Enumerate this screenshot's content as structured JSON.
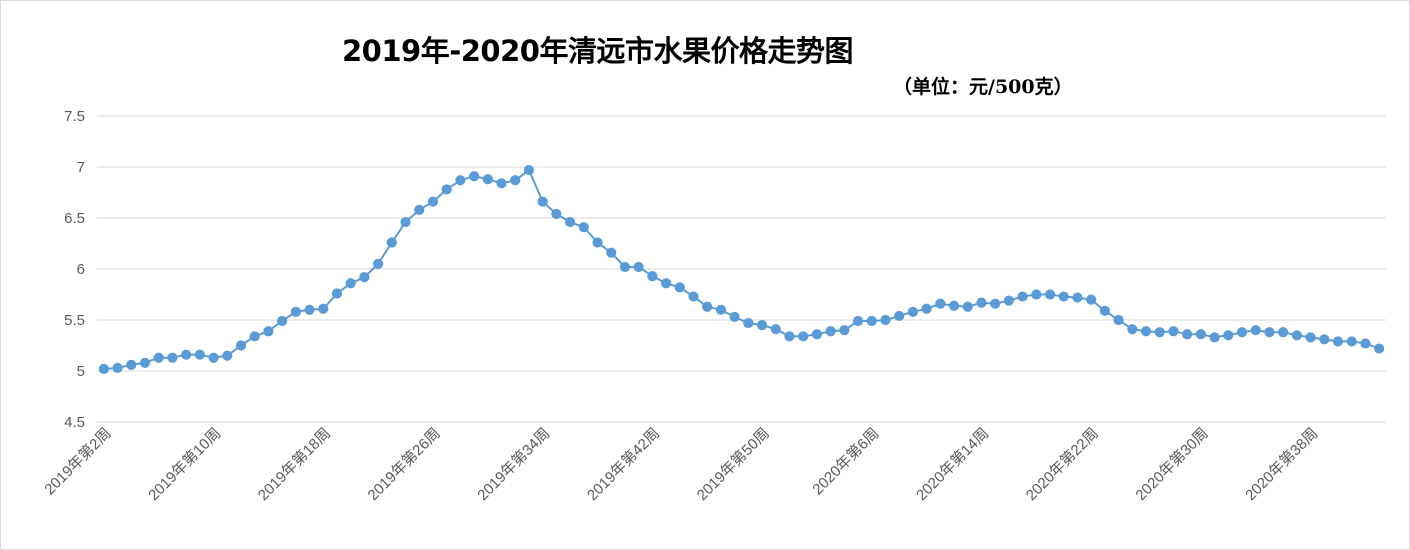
{
  "chart_data": {
    "type": "line",
    "title": "2019年-2020年清远市水果价格走势图",
    "subtitle": "（单位：元/500克）",
    "xlabel": "",
    "ylabel": "",
    "ylim": [
      4.5,
      7.5
    ],
    "yticks": [
      "4.5",
      "5",
      "5.5",
      "6",
      "6.5",
      "7",
      "7.5"
    ],
    "grid": true,
    "legend": "none",
    "color": "#5b9bd5",
    "x_tick_labels": [
      "2019年第2周",
      "2019年第10周",
      "2019年第18周",
      "2019年第26周",
      "2019年第34周",
      "2019年第42周",
      "2019年第50周",
      "2020年第6周",
      "2020年第14周",
      "2020年第22周",
      "2020年第30周",
      "2020年第38周"
    ],
    "x_tick_every": 8,
    "values": [
      5.02,
      5.03,
      5.06,
      5.08,
      5.13,
      5.13,
      5.16,
      5.16,
      5.13,
      5.15,
      5.25,
      5.34,
      5.39,
      5.49,
      5.58,
      5.6,
      5.61,
      5.76,
      5.86,
      5.92,
      6.05,
      6.26,
      6.46,
      6.58,
      6.66,
      6.78,
      6.87,
      6.91,
      6.88,
      6.84,
      6.87,
      6.97,
      6.66,
      6.54,
      6.46,
      6.41,
      6.26,
      6.16,
      6.02,
      6.02,
      5.93,
      5.86,
      5.82,
      5.73,
      5.63,
      5.6,
      5.53,
      5.47,
      5.45,
      5.41,
      5.34,
      5.34,
      5.36,
      5.39,
      5.4,
      5.49,
      5.49,
      5.5,
      5.54,
      5.58,
      5.61,
      5.66,
      5.64,
      5.63,
      5.67,
      5.66,
      5.69,
      5.73,
      5.75,
      5.75,
      5.73,
      5.72,
      5.7,
      5.59,
      5.5,
      5.41,
      5.39,
      5.38,
      5.39,
      5.36,
      5.36,
      5.33,
      5.35,
      5.38,
      5.4,
      5.38,
      5.38,
      5.35,
      5.33,
      5.31,
      5.29,
      5.29,
      5.27,
      5.22
    ]
  }
}
